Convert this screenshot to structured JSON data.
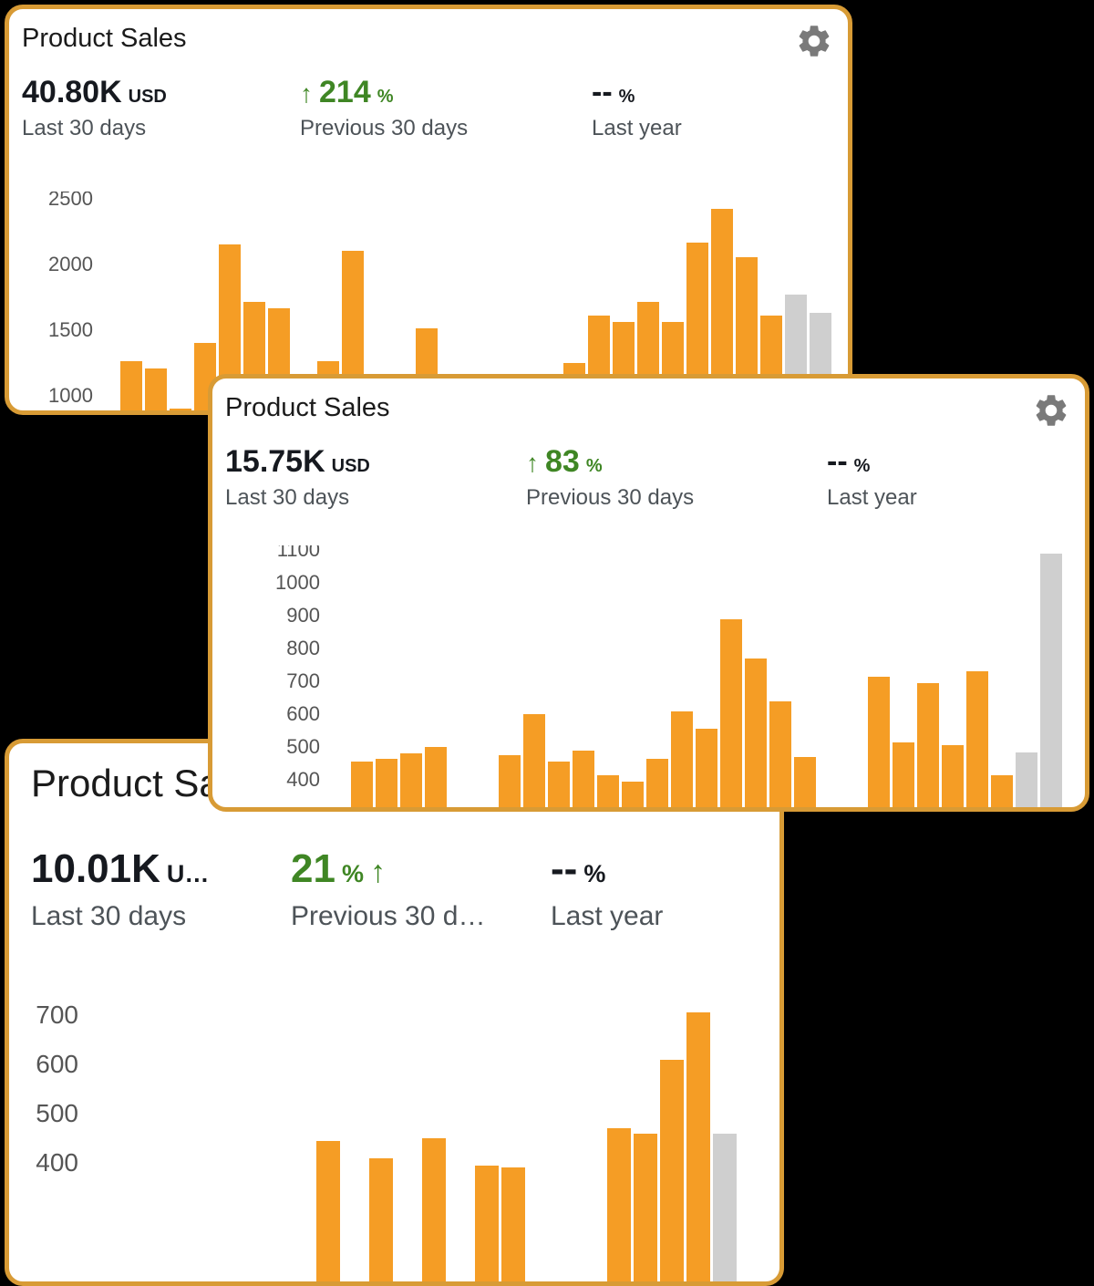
{
  "colors": {
    "card_border": "#D89B35",
    "bar_orange": "#F59D25",
    "bar_gray": "#CFCFCF",
    "positive_green": "#3F8624",
    "text_primary": "#16191F",
    "text_secondary": "#4D5358",
    "axis_label": "#555555",
    "gear_gray": "#7A7A7A",
    "background": "#000000"
  },
  "cards": [
    {
      "title": "Product Sales",
      "stats": {
        "current": {
          "value": "40.80K",
          "unit": "USD",
          "label": "Last 30 days"
        },
        "previous": {
          "arrow_before": "↑",
          "value": "214",
          "unit": "%",
          "arrow_after": "",
          "label": "Previous 30 days"
        },
        "last_year": {
          "value": "--",
          "unit": "%",
          "label": "Last year"
        }
      }
    },
    {
      "title": "Product Sales",
      "stats": {
        "current": {
          "value": "15.75K",
          "unit": "USD",
          "label": "Last 30 days"
        },
        "previous": {
          "arrow_before": "↑",
          "value": "83",
          "unit": "%",
          "arrow_after": "",
          "label": "Previous 30 days"
        },
        "last_year": {
          "value": "--",
          "unit": "%",
          "label": "Last year"
        }
      }
    },
    {
      "title": "Product Sales",
      "stats": {
        "current": {
          "value": "10.01K",
          "unit": "U…",
          "label": "Last 30 days"
        },
        "previous": {
          "arrow_before": "",
          "value": "21",
          "unit": "%",
          "arrow_after": "↑",
          "label": "Previous 30 d…"
        },
        "last_year": {
          "value": "--",
          "unit": "%",
          "label": "Last year"
        }
      }
    }
  ],
  "chart_data": [
    {
      "type": "bar",
      "title": "Product Sales",
      "ylabel": "USD",
      "yticks": [
        2500,
        2000,
        1500,
        1000
      ],
      "ylim_visible": [
        889,
        2540
      ],
      "grid": false,
      "bars": [
        1260,
        1210,
        900,
        1400,
        2150,
        1710,
        1660,
        null,
        1260,
        2100,
        null,
        null,
        1510,
        null,
        null,
        null,
        null,
        null,
        1250,
        1610,
        1560,
        1710,
        1560,
        2160,
        2420,
        2050,
        1610,
        {
          "v": 1770,
          "muted": true
        },
        {
          "v": 1630,
          "muted": true
        }
      ]
    },
    {
      "type": "bar",
      "title": "Product Sales",
      "ylabel": "USD",
      "yticks": [
        1100,
        1000,
        900,
        800,
        700,
        600,
        500,
        400
      ],
      "ylim_visible": [
        317,
        1105
      ],
      "grid": false,
      "bars": [
        455,
        465,
        480,
        500,
        310,
        null,
        475,
        600,
        455,
        490,
        415,
        395,
        465,
        610,
        555,
        890,
        770,
        640,
        470,
        310,
        null,
        715,
        515,
        695,
        505,
        730,
        415,
        {
          "v": 485,
          "muted": true
        },
        {
          "v": 1090,
          "muted": true
        }
      ]
    },
    {
      "type": "bar",
      "title": "Product Sales",
      "ylabel": "USD",
      "yticks": [
        700,
        600,
        500,
        400
      ],
      "ylim_visible": [
        387,
        740
      ],
      "grid": false,
      "bars": [
        null,
        null,
        null,
        null,
        null,
        null,
        null,
        null,
        445,
        null,
        410,
        null,
        450,
        null,
        395,
        390,
        null,
        null,
        null,
        470,
        460,
        610,
        705,
        {
          "v": 460,
          "muted": true
        }
      ]
    }
  ]
}
